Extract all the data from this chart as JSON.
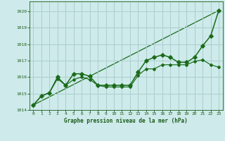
{
  "title": "Graphe pression niveau de la mer (hPa)",
  "background_color": "#ceeaea",
  "grid_color": "#aacfcf",
  "line_color": "#1a6b1a",
  "text_color": "#1a5c1a",
  "xlim": [
    -0.5,
    23.5
  ],
  "ylim": [
    1014.0,
    1020.6
  ],
  "yticks": [
    1014,
    1015,
    1016,
    1017,
    1018,
    1019,
    1020
  ],
  "xticks": [
    0,
    1,
    2,
    3,
    4,
    5,
    6,
    7,
    8,
    9,
    10,
    11,
    12,
    13,
    14,
    15,
    16,
    17,
    18,
    19,
    20,
    21,
    22,
    23
  ],
  "series1_x": [
    0,
    1,
    2,
    3,
    4,
    5,
    6,
    7,
    8,
    9,
    10,
    11,
    12,
    13,
    14,
    15,
    16,
    17,
    18,
    19,
    20,
    21,
    22,
    23
  ],
  "series1_y": [
    1014.3,
    1014.85,
    1015.05,
    1016.0,
    1015.5,
    1016.2,
    1016.2,
    1016.05,
    1015.5,
    1015.5,
    1015.5,
    1015.5,
    1015.5,
    1016.3,
    1017.0,
    1017.2,
    1017.35,
    1017.2,
    1016.9,
    1016.9,
    1017.2,
    1017.9,
    1018.5,
    1020.05
  ],
  "series2_x": [
    0,
    1,
    2,
    3,
    4,
    5,
    6,
    7,
    8,
    9,
    10,
    11,
    12,
    13,
    14,
    15,
    16,
    17,
    18,
    19,
    20,
    21,
    22,
    23
  ],
  "series2_y": [
    1014.3,
    1014.85,
    1015.05,
    1015.9,
    1015.5,
    1015.85,
    1016.0,
    1015.85,
    1015.5,
    1015.4,
    1015.4,
    1015.4,
    1015.4,
    1016.1,
    1016.5,
    1016.5,
    1016.75,
    1016.75,
    1016.75,
    1016.75,
    1016.95,
    1017.05,
    1016.75,
    1016.6
  ],
  "trend_x": [
    0,
    23
  ],
  "trend_y": [
    1014.3,
    1020.05
  ]
}
